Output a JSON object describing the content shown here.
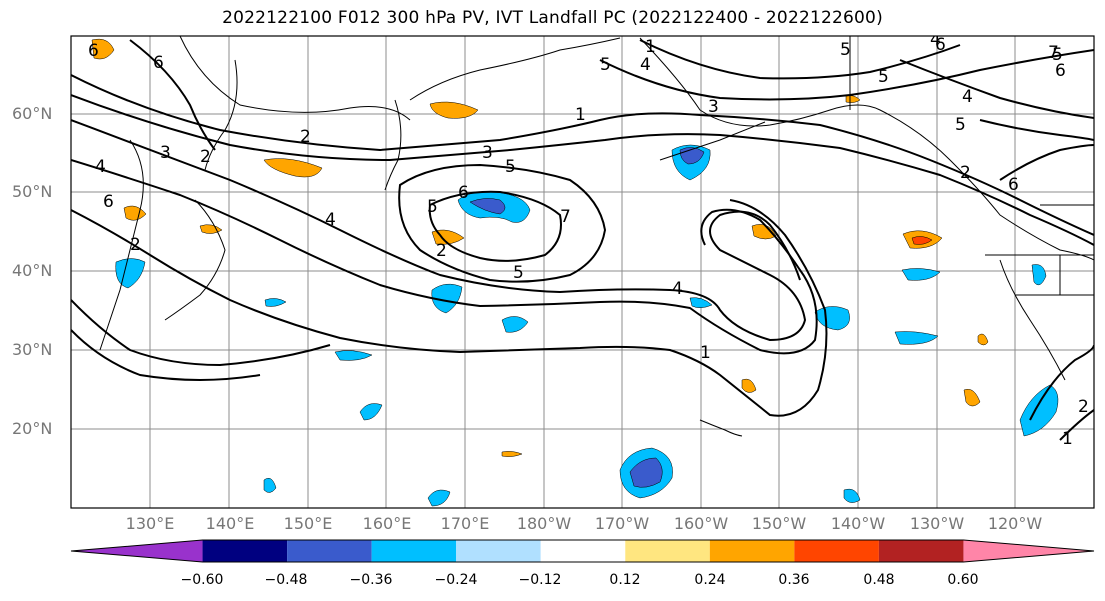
{
  "title": "2022122100 F012 300 hPa PV, IVT Landfall PC (2022122400 - 2022122600)",
  "map": {
    "lat_labels": [
      "60°N",
      "50°N",
      "40°N",
      "30°N",
      "20°N"
    ],
    "lon_labels": [
      "130°E",
      "140°E",
      "150°E",
      "160°E",
      "170°E",
      "180°W",
      "170°W",
      "160°W",
      "150°W",
      "140°W",
      "130°W",
      "120°W"
    ],
    "contour_labels": [
      "1",
      "2",
      "3",
      "4",
      "5",
      "6",
      "1",
      "2",
      "3",
      "4",
      "5",
      "6",
      "5",
      "6",
      "5",
      "4",
      "1",
      "3",
      "2",
      "4",
      "5",
      "6",
      "5",
      "4",
      "5",
      "6",
      "7",
      "1",
      "2",
      "4",
      "2",
      "5",
      "6",
      "7",
      "6",
      "2"
    ],
    "colors": {
      "coast": "#000000",
      "grid": "#8c8c8c",
      "contour": "#000000"
    }
  },
  "colorbar": {
    "colors": [
      "#9932cc",
      "#000080",
      "#3a5bcc",
      "#00bfff",
      "#b0e0ff",
      "#ffffff",
      "#ffe680",
      "#ffa500",
      "#ff4500",
      "#b22222",
      "#ff85a8"
    ],
    "tick_labels": [
      "−0.60",
      "−0.48",
      "−0.36",
      "−0.24",
      "−0.12",
      "0.12",
      "0.24",
      "0.36",
      "0.48",
      "0.60"
    ]
  }
}
